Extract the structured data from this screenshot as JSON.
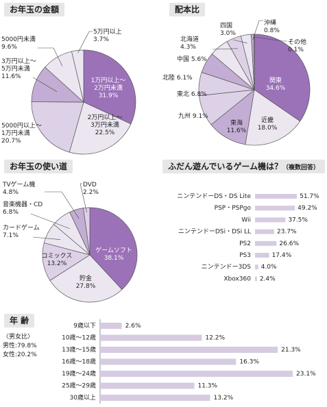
{
  "titles": {
    "otoshidama_amount": "お年玉の金額",
    "distribution": "配本比",
    "otoshidama_use": "お年玉の使い道",
    "game_consoles": "ふだん遊んでいるゲーム機は？",
    "game_consoles_note": "（複数回答）",
    "age": "年  齢"
  },
  "gender_ratio": {
    "title": "〈男女比〉",
    "male": "男性:79.8%",
    "female": "女性:20.2%"
  },
  "colors": {
    "accent": "#9b72b8",
    "mid": "#c3add4",
    "light": "#ddd1e7",
    "pale": "#ece6f1",
    "bar": "#d7cbe2"
  },
  "chart_data": [
    {
      "type": "pie",
      "title": "お年玉の金額",
      "slices": [
        {
          "name": "1万円以上～2万円未満",
          "value": 31.9,
          "label": "31.9%"
        },
        {
          "name": "2万円以上～3万円未満",
          "value": 22.5,
          "label": "22.5%"
        },
        {
          "name": "5000円以上～1万円未満",
          "value": 20.7,
          "label": "20.7%"
        },
        {
          "name": "3万円以上～5万円未満",
          "value": 11.6,
          "label": "11.6%"
        },
        {
          "name": "5000円未満",
          "value": 9.6,
          "label": "9.6%"
        },
        {
          "name": "5万円以上",
          "value": 3.7,
          "label": "3.7%"
        }
      ]
    },
    {
      "type": "pie",
      "title": "配本比",
      "slices": [
        {
          "name": "関東",
          "value": 34.6,
          "label": "34.6%"
        },
        {
          "name": "近畿",
          "value": 18.0,
          "label": "18.0%"
        },
        {
          "name": "東海",
          "value": 11.6,
          "label": "11.6%"
        },
        {
          "name": "九州",
          "value": 9.1,
          "label": "9.1%"
        },
        {
          "name": "東北",
          "value": 6.8,
          "label": "6.8%"
        },
        {
          "name": "北陸",
          "value": 6.1,
          "label": "6.1%"
        },
        {
          "name": "中国",
          "value": 5.6,
          "label": "5.6%"
        },
        {
          "name": "北海道",
          "value": 4.3,
          "label": "4.3%"
        },
        {
          "name": "四国",
          "value": 3.0,
          "label": "3.0%"
        },
        {
          "name": "沖縄",
          "value": 0.8,
          "label": "0.8%"
        },
        {
          "name": "その他",
          "value": 0.1,
          "label": "0.1%"
        }
      ]
    },
    {
      "type": "pie",
      "title": "お年玉の使い道",
      "slices": [
        {
          "name": "ゲームソフト",
          "value": 38.1,
          "label": "38.1%"
        },
        {
          "name": "貯金",
          "value": 27.8,
          "label": "27.8%"
        },
        {
          "name": "コミックス",
          "value": 13.2,
          "label": "13.2%"
        },
        {
          "name": "カードゲーム",
          "value": 7.1,
          "label": "7.1%"
        },
        {
          "name": "音楽機器・CD",
          "value": 6.8,
          "label": "6.8%"
        },
        {
          "name": "TVゲーム機",
          "value": 4.8,
          "label": "4.8%"
        },
        {
          "name": "DVD",
          "value": 2.2,
          "label": "2.2%"
        }
      ]
    },
    {
      "type": "bar",
      "orientation": "horizontal",
      "title": "ふだん遊んでいるゲーム機は？（複数回答）",
      "categories": [
        "ニンテンドーDS・DS Lite",
        "PSP・PSPgo",
        "Wii",
        "ニンテンドーDSi・DSi LL",
        "PS2",
        "PS3",
        "ニンテンドー3DS",
        "Xbox360"
      ],
      "values": [
        51.7,
        49.2,
        37.5,
        23.7,
        26.6,
        17.4,
        4.0,
        2.4
      ],
      "labels": [
        "51.7%",
        "49.2%",
        "37.5%",
        "23.7%",
        "26.6%",
        "17.4%",
        "4.0%",
        "2.4%"
      ],
      "xlim": [
        0,
        55
      ]
    },
    {
      "type": "bar",
      "orientation": "horizontal",
      "title": "年  齢",
      "categories": [
        "9歳以下",
        "10歳～12歳",
        "13歳～15歳",
        "16歳～18歳",
        "19歳～24歳",
        "25歳～29歳",
        "30歳以上"
      ],
      "values": [
        2.6,
        12.2,
        21.3,
        16.3,
        23.1,
        11.3,
        13.2
      ],
      "labels": [
        "2.6%",
        "12.2%",
        "21.3%",
        "16.3%",
        "23.1%",
        "11.3%",
        "13.2%"
      ],
      "xlim": [
        0,
        24
      ]
    }
  ]
}
